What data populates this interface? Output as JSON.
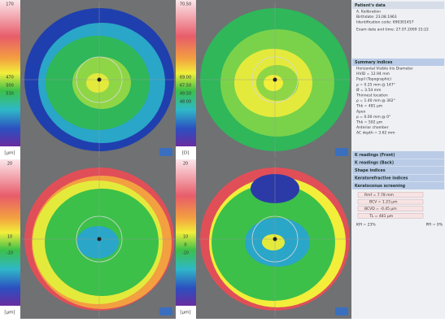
{
  "maps": [
    {
      "scale": [
        "170",
        "470",
        "500",
        "530"
      ],
      "unit": "[µm]"
    },
    {
      "scale": [
        "70.50",
        "69.00",
        "67.50",
        "49.50",
        "48.00"
      ],
      "unit": "[D]"
    },
    {
      "scale": [
        "20",
        "10",
        "0",
        "-10"
      ],
      "unit": "[µm]"
    },
    {
      "scale": [
        "20",
        "10",
        "0",
        "-10"
      ],
      "unit": "[µm]"
    }
  ],
  "sidebar": {
    "patient": {
      "title": "Patient's data",
      "lines": [
        "A. Kalibration",
        "Birthdate: 23.08.1963",
        "Identification code: 690301457",
        "Exam date and time: 27.07.2009 15:22"
      ]
    },
    "summary": {
      "title": "Summary indices",
      "lines": [
        "Horizontal Visible Iris Diameter",
        "HVID = 12.94 mm",
        "Pupil (Topographic)",
        "ρ = 0.25 mm @ 147°",
        "Ø = 3.54 mm",
        "Thinnest location",
        "ρ = 1.40 mm @ 302°",
        "Thk = 481 µm",
        "Apex",
        "ρ = 0.00 mm @ 0°",
        "Thk = 502 µm",
        "Anterior chamber",
        "AC depth = 3.62 mm"
      ]
    },
    "sections": [
      "K readings (Front)",
      "K readings (Back)",
      "Shape indices",
      "Keratorefractive indices",
      "Keratoconus screening"
    ],
    "screening": [
      "Rmf = 7.78 mm",
      "BCV = 1.23 µm",
      "BCVD = -0.45 µm",
      "TL = 481 µm"
    ],
    "footer": [
      "KPI = 23%",
      "PPI = 0%"
    ]
  }
}
